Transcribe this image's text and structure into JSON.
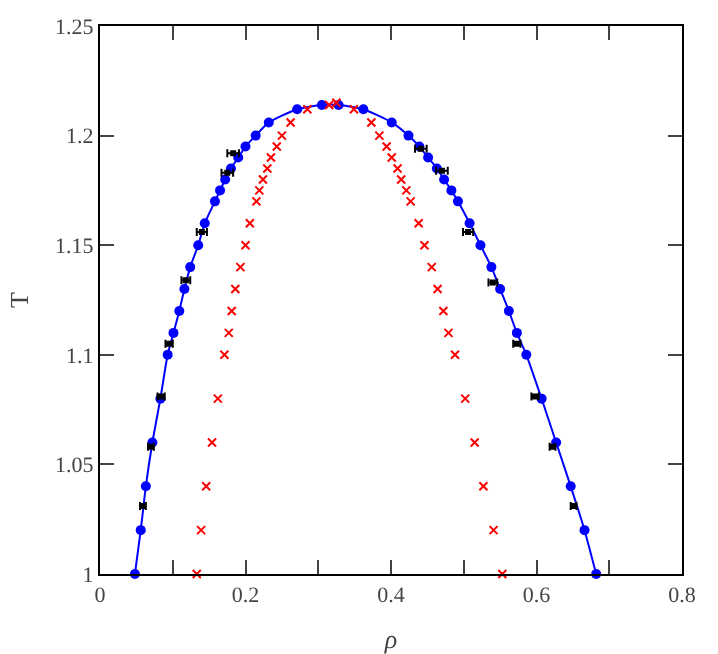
{
  "chart_data": {
    "type": "scatter",
    "xlabel": "ρ",
    "ylabel": "T",
    "xlim": [
      0,
      0.8
    ],
    "ylim": [
      1,
      1.25
    ],
    "xticks": [
      0,
      {
        "value": 0.1,
        "label": null
      },
      0.2,
      {
        "value": 0.3,
        "label": null
      },
      0.4,
      {
        "value": 0.5,
        "label": null
      },
      0.6,
      {
        "value": 0.7,
        "label": null
      },
      0.8
    ],
    "yticks": [
      1,
      1.05,
      1.1,
      1.15,
      1.2,
      1.25
    ],
    "grid": false,
    "series": [
      {
        "type": "line",
        "color": "#0000ff",
        "marker": "circle",
        "x": [
          0.048,
          0.056,
          0.063,
          0.072,
          0.083,
          0.093,
          0.101,
          0.109,
          0.116,
          0.124,
          0.135,
          0.144,
          0.158,
          0.165,
          0.172,
          0.18,
          0.19,
          0.2,
          0.214,
          0.232,
          0.271,
          0.305,
          0.328,
          0.362,
          0.401,
          0.424,
          0.439,
          0.451,
          0.463,
          0.473,
          0.483,
          0.492,
          0.508,
          0.523,
          0.538,
          0.55,
          0.562,
          0.573,
          0.586,
          0.607,
          0.627,
          0.647,
          0.666,
          0.682
        ],
        "values": [
          1.0,
          1.02,
          1.04,
          1.06,
          1.08,
          1.1,
          1.11,
          1.12,
          1.13,
          1.14,
          1.15,
          1.16,
          1.17,
          1.175,
          1.18,
          1.185,
          1.19,
          1.195,
          1.2,
          1.206,
          1.212,
          1.214,
          1.214,
          1.212,
          1.206,
          1.2,
          1.195,
          1.19,
          1.185,
          1.18,
          1.175,
          1.17,
          1.16,
          1.15,
          1.14,
          1.13,
          1.12,
          1.11,
          1.1,
          1.08,
          1.06,
          1.04,
          1.02,
          1.0
        ]
      },
      {
        "color": "#000000",
        "marker": "square",
        "x": [
          0.059,
          0.07,
          0.084,
          0.095,
          0.118,
          0.14,
          0.175,
          0.183,
          0.441,
          0.47,
          0.506,
          0.54,
          0.573,
          0.598,
          0.622,
          0.651
        ],
        "values": [
          1.031,
          1.058,
          1.081,
          1.105,
          1.134,
          1.156,
          1.183,
          1.192,
          1.194,
          1.184,
          1.156,
          1.133,
          1.105,
          1.081,
          1.058,
          1.031
        ],
        "xerrors": [
          0.004,
          0.004,
          0.005,
          0.005,
          0.006,
          0.007,
          0.008,
          0.008,
          0.008,
          0.008,
          0.007,
          0.006,
          0.005,
          0.005,
          0.004,
          0.004
        ]
      },
      {
        "color": "#ff0000",
        "marker": "cross",
        "x": [
          0.133,
          0.139,
          0.146,
          0.154,
          0.162,
          0.171,
          0.177,
          0.181,
          0.186,
          0.193,
          0.2,
          0.206,
          0.215,
          0.219,
          0.224,
          0.23,
          0.235,
          0.243,
          0.25,
          0.262,
          0.285,
          0.315,
          0.325,
          0.349,
          0.373,
          0.384,
          0.394,
          0.401,
          0.409,
          0.414,
          0.421,
          0.427,
          0.438,
          0.446,
          0.456,
          0.464,
          0.472,
          0.479,
          0.488,
          0.502,
          0.515,
          0.527,
          0.541,
          0.553
        ],
        "values": [
          1.0,
          1.02,
          1.04,
          1.06,
          1.08,
          1.1,
          1.11,
          1.12,
          1.13,
          1.14,
          1.15,
          1.16,
          1.17,
          1.175,
          1.18,
          1.185,
          1.19,
          1.195,
          1.2,
          1.206,
          1.212,
          1.214,
          1.215,
          1.212,
          1.206,
          1.2,
          1.195,
          1.19,
          1.185,
          1.18,
          1.175,
          1.17,
          1.16,
          1.15,
          1.14,
          1.13,
          1.12,
          1.11,
          1.1,
          1.08,
          1.06,
          1.04,
          1.02,
          1.0
        ]
      }
    ]
  }
}
